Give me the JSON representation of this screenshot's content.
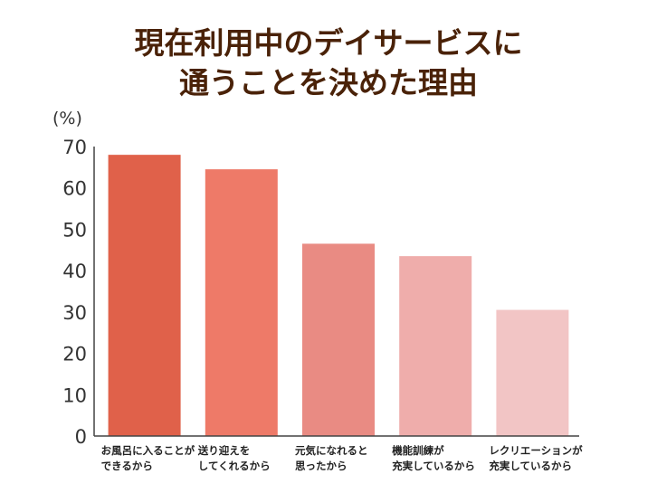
{
  "chart_data": {
    "type": "bar",
    "title": [
      "現在利用中のデイサービスに",
      "通うことを決めた理由"
    ],
    "ylabel": "(%)",
    "xlabel": "",
    "ylim": [
      0,
      70
    ],
    "yticks": [
      0,
      10,
      20,
      30,
      40,
      50,
      60,
      70
    ],
    "grid": false,
    "categories": [
      [
        "お風呂に入ることが",
        "できるから"
      ],
      [
        "送り迎えを",
        "してくれるから"
      ],
      [
        "元気になれると",
        "思ったから"
      ],
      [
        "機能訓練が",
        "充実しているから"
      ],
      [
        "レクリエーションが",
        "充実しているから"
      ]
    ],
    "values": [
      68,
      64.5,
      46.5,
      43.5,
      30.5
    ],
    "colors": [
      "#e0614a",
      "#ee7a68",
      "#e98b83",
      "#efadab",
      "#f2c5c5"
    ],
    "title_color": "#4a2208",
    "axis_color": "#444444"
  }
}
